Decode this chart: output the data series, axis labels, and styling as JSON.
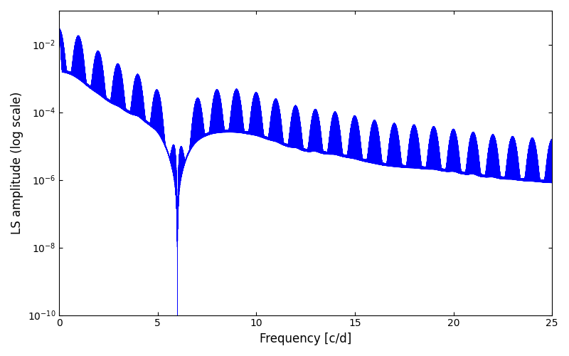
{
  "xlabel": "Frequency [c/d]",
  "ylabel": "LS amplitude (log scale)",
  "xlim": [
    0,
    25
  ],
  "ylim": [
    1e-10,
    0.1
  ],
  "line_color": "#0000ff",
  "line_width": 0.4,
  "background_color": "#ffffff",
  "figsize": [
    8.0,
    5.0
  ],
  "dpi": 100,
  "yticks": [
    1e-10,
    1e-08,
    1e-06,
    0.0001,
    0.01
  ],
  "xticks": [
    0,
    5,
    10,
    15,
    20,
    25
  ]
}
